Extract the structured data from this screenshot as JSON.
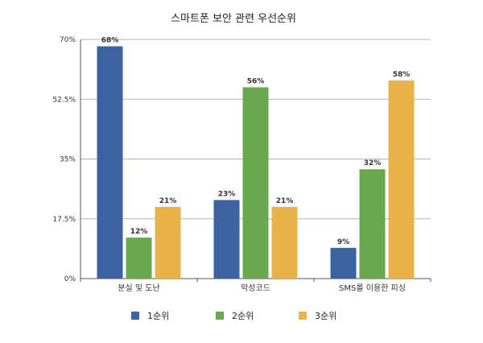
{
  "chart_data": {
    "type": "bar",
    "title": "스마트폰 보안 관련 우선순위",
    "categories": [
      "분실 및 도난",
      "악성코드",
      "SMS를 이용한 피싱"
    ],
    "series": [
      {
        "name": "1순위",
        "values": [
          68,
          23,
          9
        ],
        "labels": [
          "68%",
          "23%",
          "9%"
        ],
        "color": "#3d62a0"
      },
      {
        "name": "2순위",
        "values": [
          12,
          56,
          32
        ],
        "labels": [
          "12%",
          "56%",
          "32%"
        ],
        "color": "#6aa84f"
      },
      {
        "name": "3순위",
        "values": [
          21,
          21,
          58
        ],
        "labels": [
          "21%",
          "21%",
          "58%"
        ],
        "color": "#e8b44a"
      }
    ],
    "ylim": [
      0,
      70
    ],
    "yticks": [
      0,
      17.5,
      35,
      52.5,
      70
    ],
    "ytick_labels": [
      "0%",
      "17.5%",
      "35%",
      "52.5%",
      "70%"
    ],
    "grid": true,
    "legend": "bottom"
  }
}
